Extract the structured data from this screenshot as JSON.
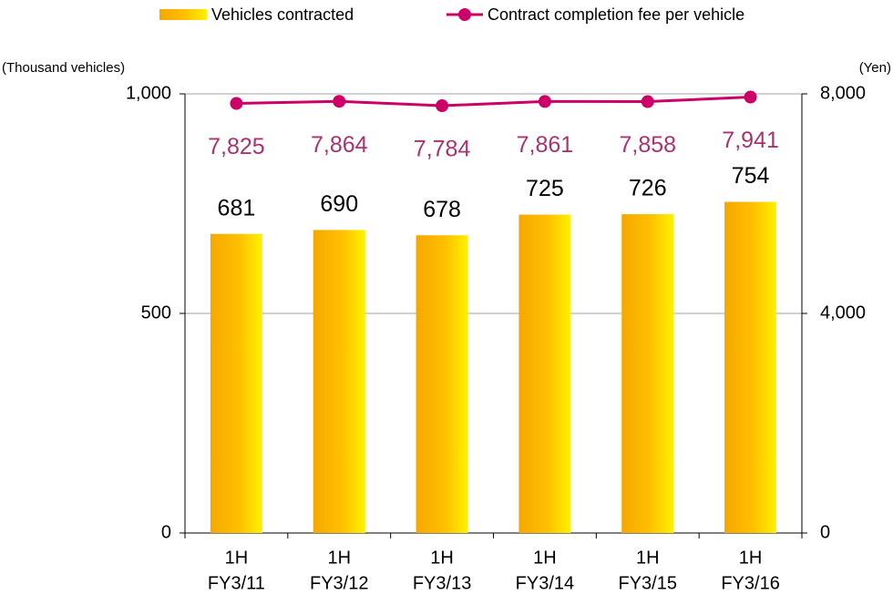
{
  "chart_data": {
    "type": "bar",
    "categories": [
      [
        "1H",
        "FY3/11"
      ],
      [
        "1H",
        "FY3/12"
      ],
      [
        "1H",
        "FY3/13"
      ],
      [
        "1H",
        "FY3/14"
      ],
      [
        "1H",
        "FY3/15"
      ],
      [
        "1H",
        "FY3/16"
      ]
    ],
    "series": [
      {
        "name": "Vehicles contracted",
        "color": "#ffc000",
        "values": [
          681,
          690,
          678,
          725,
          726,
          754
        ]
      },
      {
        "name": "Contract completion fee per vehicle",
        "type": "line",
        "axis": "y2",
        "color": "#cc0066",
        "values": [
          7825,
          7864,
          7784,
          7861,
          7858,
          7941
        ],
        "value_labels": [
          "7,825",
          "7,864",
          "7,784",
          "7,861",
          "7,858",
          "7,941"
        ]
      }
    ],
    "ylabel": "(Thousand vehicles)",
    "y2label": "(Yen)",
    "ylim": [
      0,
      1000
    ],
    "yticks": [
      0,
      500,
      {
        "value": 1000,
        "label": "1,000"
      }
    ],
    "y2lim": [
      0,
      8000
    ],
    "y2ticks": [
      0,
      {
        "value": 4000,
        "label": "4,000"
      },
      {
        "value": 8000,
        "label": "8,000"
      }
    ],
    "grid": true,
    "legend": "top"
  }
}
